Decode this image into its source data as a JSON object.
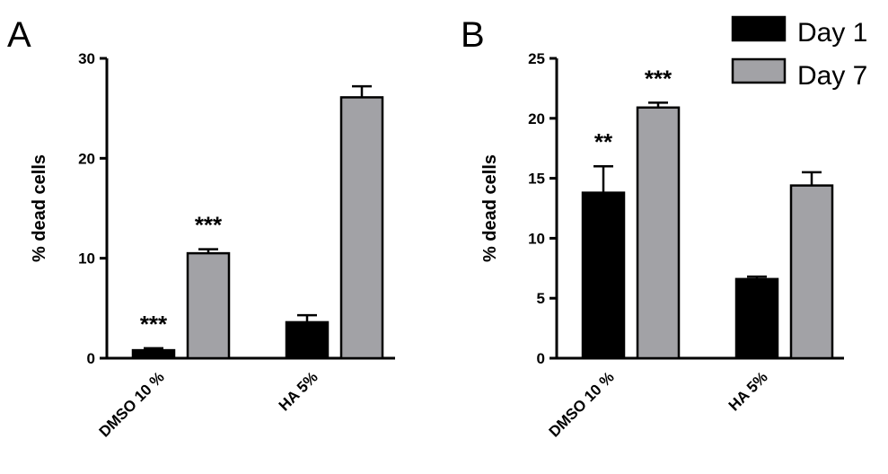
{
  "legend": {
    "entries": [
      {
        "name": "Day 1",
        "color": "#000000"
      },
      {
        "name": "Day 7",
        "color": "#a2a2a6"
      }
    ],
    "placement": "top-right"
  },
  "chart_data": [
    {
      "type": "bar",
      "panel": "A",
      "ylabel": "% dead cells",
      "xlabel": "",
      "ylim": [
        0,
        30
      ],
      "yticks": [
        0,
        10,
        20,
        30
      ],
      "grid": false,
      "categories": [
        "DMSO 10 %",
        "HA 5%"
      ],
      "series": [
        {
          "name": "Day 1",
          "color": "#000000",
          "values": [
            0.8,
            3.6
          ],
          "errors": [
            0.2,
            0.7
          ],
          "significance": [
            "***",
            ""
          ]
        },
        {
          "name": "Day 7",
          "color": "#a2a2a6",
          "values": [
            10.5,
            26.1
          ],
          "errors": [
            0.4,
            1.1
          ],
          "significance": [
            "***",
            ""
          ]
        }
      ]
    },
    {
      "type": "bar",
      "panel": "B",
      "ylabel": "% dead cells",
      "xlabel": "",
      "ylim": [
        0,
        25
      ],
      "yticks": [
        0,
        5,
        10,
        15,
        20,
        25
      ],
      "grid": false,
      "categories": [
        "DMSO 10 %",
        "HA 5%"
      ],
      "series": [
        {
          "name": "Day 1",
          "color": "#000000",
          "values": [
            13.8,
            6.6
          ],
          "errors": [
            2.2,
            0.2
          ],
          "significance": [
            "**",
            ""
          ]
        },
        {
          "name": "Day 7",
          "color": "#a2a2a6",
          "values": [
            20.9,
            14.4
          ],
          "errors": [
            0.4,
            1.1
          ],
          "significance": [
            "***",
            ""
          ]
        }
      ]
    }
  ]
}
